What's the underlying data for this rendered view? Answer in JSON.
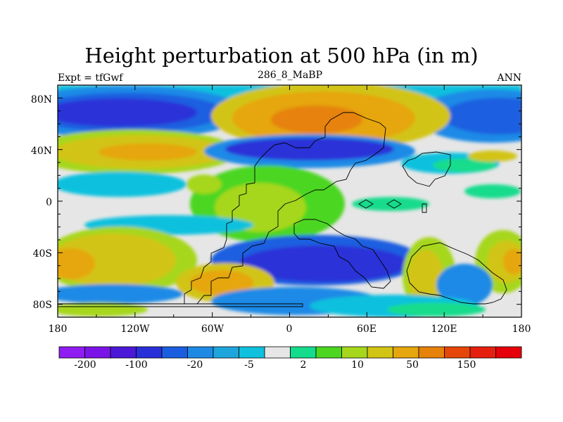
{
  "title": "Height perturbation at 500 hPa (in m)",
  "left_label": "Expt = tfGwf",
  "center_label": "286_8_MaBP",
  "right_label": "ANN",
  "lat_ticks": [
    "80N",
    "40N",
    "0",
    "40S",
    "80S"
  ],
  "lon_ticks": [
    "180",
    "120W",
    "60W",
    "0",
    "60E",
    "120E",
    "180"
  ],
  "colorbar": {
    "colors": [
      "#8f1cf0",
      "#7b14e6",
      "#4a18d6",
      "#2a30d8",
      "#1b5fe0",
      "#1f8ae6",
      "#1ea6dc",
      "#10c1de",
      "#e6e6e6",
      "#14dc8c",
      "#4cd620",
      "#a6d71c",
      "#d2c414",
      "#e6a60e",
      "#e6820a",
      "#e6460a",
      "#e6200e",
      "#e6000a"
    ],
    "labels": [
      "-200",
      "-100",
      "-20",
      "-5",
      "2",
      "10",
      "50",
      "150"
    ]
  }
}
